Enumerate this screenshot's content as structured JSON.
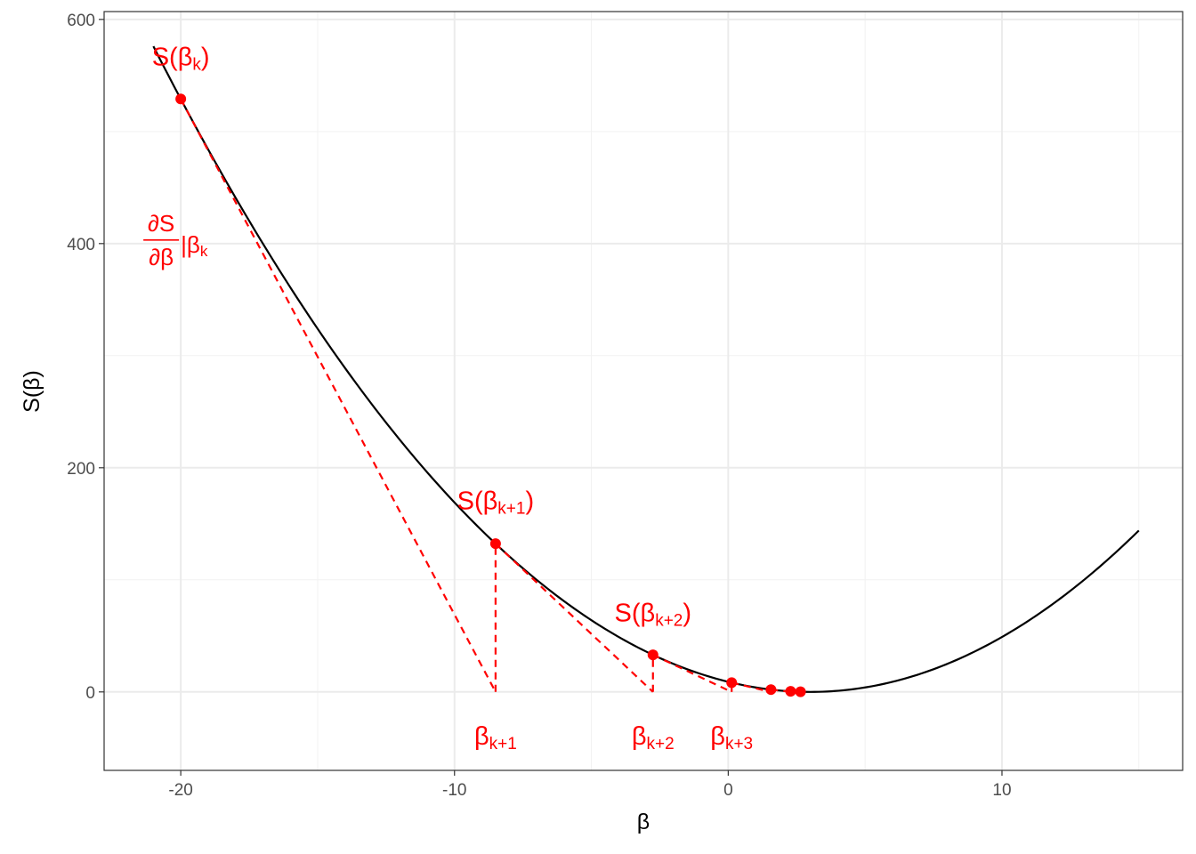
{
  "chart_data": {
    "type": "line",
    "xlabel": "β",
    "ylabel": "S(β)",
    "xlim": [
      -22.8,
      16.6
    ],
    "ylim": [
      -70,
      607
    ],
    "x_ticks": [
      -20,
      -10,
      0,
      10
    ],
    "x_tick_labels": [
      "-20",
      "-10",
      "0",
      "10"
    ],
    "y_ticks": [
      0,
      200,
      400,
      600
    ],
    "y_tick_labels": [
      "0",
      "200",
      "400",
      "600"
    ],
    "grid": true,
    "curve": {
      "name": "",
      "function": "S(β) = (β − 3)²",
      "x_start": -21,
      "x_end": 15,
      "color": "#000000"
    },
    "iterates": {
      "color": "#ff0000",
      "points": [
        {
          "x": -20.0,
          "y": 529.0
        },
        {
          "x": -8.5,
          "y": 132.25
        },
        {
          "x": -2.75,
          "y": 33.06
        },
        {
          "x": 0.125,
          "y": 8.27
        },
        {
          "x": 1.56,
          "y": 2.07
        },
        {
          "x": 2.28,
          "y": 0.52
        },
        {
          "x": 2.64,
          "y": 0.13
        }
      ]
    },
    "annotations": [
      {
        "id": "s-bk",
        "base": "S(β",
        "sub": "k",
        "tail": ")",
        "x": -20.0,
        "y": 566
      },
      {
        "id": "deriv",
        "numerator": "∂S",
        "denominator": "∂β",
        "suffix": "|β",
        "sub": "k",
        "x": -20.0,
        "y": 400
      },
      {
        "id": "s-bk1",
        "base": "S(β",
        "sub": "k+1",
        "tail": ")",
        "x": -8.5,
        "y": 170
      },
      {
        "id": "s-bk2",
        "base": "S(β",
        "sub": "k+2",
        "tail": ")",
        "x": -2.75,
        "y": 70
      },
      {
        "id": "b-k1",
        "base": "β",
        "sub": "k+1",
        "tail": "",
        "x": -8.5,
        "y": -40
      },
      {
        "id": "b-k2",
        "base": "β",
        "sub": "k+2",
        "tail": "",
        "x": -2.75,
        "y": -40
      },
      {
        "id": "b-k3",
        "base": "β",
        "sub": "k+3",
        "tail": "",
        "x": 0.125,
        "y": -40
      }
    ]
  }
}
